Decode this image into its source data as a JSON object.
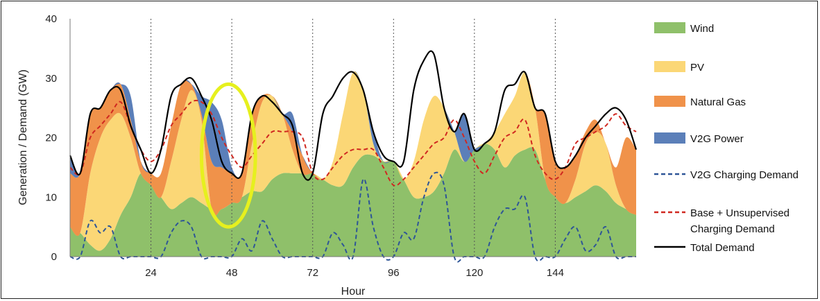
{
  "chart_data": {
    "type": "area",
    "xlabel": "Hour",
    "ylabel": "Generation / Demand (GW)",
    "xlim": [
      0,
      168
    ],
    "ylim": [
      0,
      40
    ],
    "x_ticks": [
      24,
      48,
      72,
      96,
      120,
      144
    ],
    "y_ticks": [
      0,
      10,
      20,
      30,
      40
    ],
    "gridlines": "vertical dotted at each 24 hours",
    "legend_position": "right",
    "x": [
      0,
      3,
      6,
      9,
      12,
      15,
      18,
      21,
      24,
      27,
      30,
      33,
      36,
      39,
      42,
      45,
      48,
      51,
      54,
      57,
      60,
      63,
      66,
      69,
      72,
      75,
      78,
      81,
      84,
      87,
      90,
      93,
      96,
      99,
      102,
      105,
      108,
      111,
      114,
      117,
      120,
      123,
      126,
      129,
      132,
      135,
      138,
      141,
      144,
      147,
      150,
      153,
      156,
      159,
      162,
      165,
      168
    ],
    "series": [
      {
        "name": "Wind",
        "kind": "stacked-area",
        "color": "#8fc06a",
        "values": [
          5,
          4,
          2,
          1,
          3,
          7,
          10,
          14,
          12,
          10,
          8,
          9,
          10,
          9,
          8,
          8,
          9,
          10,
          11,
          11,
          13,
          14,
          14,
          14,
          14,
          13,
          12,
          12,
          15,
          17,
          17,
          16,
          16,
          13,
          10,
          10,
          11,
          14,
          18,
          16,
          18,
          19,
          18,
          15,
          17,
          18,
          18,
          13,
          10,
          9,
          10,
          11,
          12,
          11,
          9,
          8,
          7
        ]
      },
      {
        "name": "PV",
        "kind": "stacked-area",
        "color": "#fbd776",
        "values": [
          0,
          0,
          12,
          19,
          20,
          17,
          10,
          0,
          0,
          0,
          8,
          14,
          18,
          14,
          0,
          0,
          0,
          0,
          8,
          15,
          14,
          10,
          4,
          0,
          0,
          0,
          4,
          12,
          16,
          11,
          2,
          0,
          0,
          0,
          6,
          13,
          16,
          11,
          3,
          0,
          0,
          0,
          3,
          9,
          10,
          13,
          7,
          0,
          0,
          0,
          3,
          8,
          9,
          8,
          3,
          0,
          0
        ]
      },
      {
        "name": "Natural Gas",
        "kind": "stacked-area",
        "color": "#f0924a",
        "values": [
          9,
          10,
          10,
          5,
          5,
          5,
          3,
          2,
          2,
          4,
          6,
          6,
          1,
          1,
          8,
          7,
          5,
          4,
          5,
          1,
          0,
          0,
          3,
          3,
          0,
          0,
          0,
          0,
          0,
          0,
          0,
          0,
          0,
          0,
          0,
          0,
          0,
          0,
          0,
          0,
          0,
          0,
          0,
          0,
          0,
          0,
          0,
          11,
          6,
          6,
          4,
          2,
          2,
          0,
          3,
          12,
          11
        ]
      },
      {
        "name": "V2G Power",
        "kind": "stacked-area",
        "color": "#5b7fb9",
        "values": [
          3,
          0,
          0,
          0,
          0,
          0,
          4,
          0,
          0,
          0,
          0,
          0,
          0,
          3,
          10,
          8,
          1,
          0,
          0,
          0,
          0,
          0,
          3,
          0,
          0,
          0,
          0,
          0,
          0,
          0,
          2,
          0,
          0,
          0,
          0,
          0,
          0,
          0,
          0,
          8,
          0,
          0,
          0,
          0,
          0,
          0,
          0,
          0,
          0,
          0,
          0,
          0,
          0,
          0,
          0,
          0,
          0
        ]
      },
      {
        "name": "V2G Charging Demand",
        "kind": "line",
        "style": "dashed",
        "color": "#2e5597",
        "values": [
          0,
          0,
          6,
          4,
          5,
          0,
          0,
          0,
          0,
          0,
          4,
          6,
          5,
          0,
          0,
          0,
          0,
          3,
          1,
          6,
          3,
          0,
          0,
          0,
          0,
          0,
          4,
          2,
          0,
          13,
          5,
          0,
          0,
          4,
          3,
          10,
          14,
          12,
          0,
          0,
          0,
          0,
          5,
          8,
          8,
          10,
          0,
          0,
          0,
          3,
          5,
          1,
          2,
          5,
          0,
          0,
          0
        ]
      },
      {
        "name": "Base + Unsupervised Charging Demand",
        "kind": "line",
        "style": "dashed",
        "color": "#d02820",
        "values": [
          15,
          14,
          20,
          22,
          24,
          26,
          22,
          18,
          16,
          18,
          22,
          24,
          26,
          26,
          24,
          20,
          17,
          15,
          17,
          19,
          21,
          21,
          21,
          20,
          14,
          13,
          15,
          17,
          18,
          18,
          18,
          15,
          12,
          13,
          15,
          17,
          19,
          20,
          23,
          20,
          16,
          14,
          17,
          20,
          21,
          23,
          17,
          14,
          13,
          15,
          19,
          20,
          21,
          22,
          24,
          22,
          21
        ]
      },
      {
        "name": "Total Demand",
        "kind": "line",
        "style": "solid",
        "color": "#000000",
        "values": [
          17,
          14,
          24,
          25,
          28,
          28,
          22,
          18,
          14,
          18,
          27,
          29,
          30,
          27,
          23,
          16,
          14,
          14,
          24,
          27,
          26,
          24,
          22,
          14,
          14,
          24,
          27,
          30,
          31,
          28,
          21,
          17,
          16,
          16,
          28,
          33,
          34,
          25,
          21,
          24,
          18,
          19,
          21,
          28,
          29,
          31,
          25,
          24,
          16,
          15,
          17,
          20,
          22,
          24,
          25,
          23,
          18
        ]
      }
    ],
    "legend": {
      "wind": "Wind",
      "pv": "PV",
      "gas": "Natural Gas",
      "v2g_power": "V2G Power",
      "v2g_charging": "V2G Charging Demand",
      "base_line1": "Base + Unsupervised",
      "base_line2": "Charging Demand",
      "total": "Total Demand"
    },
    "annotation": {
      "shape": "ellipse",
      "color": "#e6f01e",
      "x_range": [
        39,
        55
      ],
      "y_range": [
        5,
        29
      ]
    }
  }
}
